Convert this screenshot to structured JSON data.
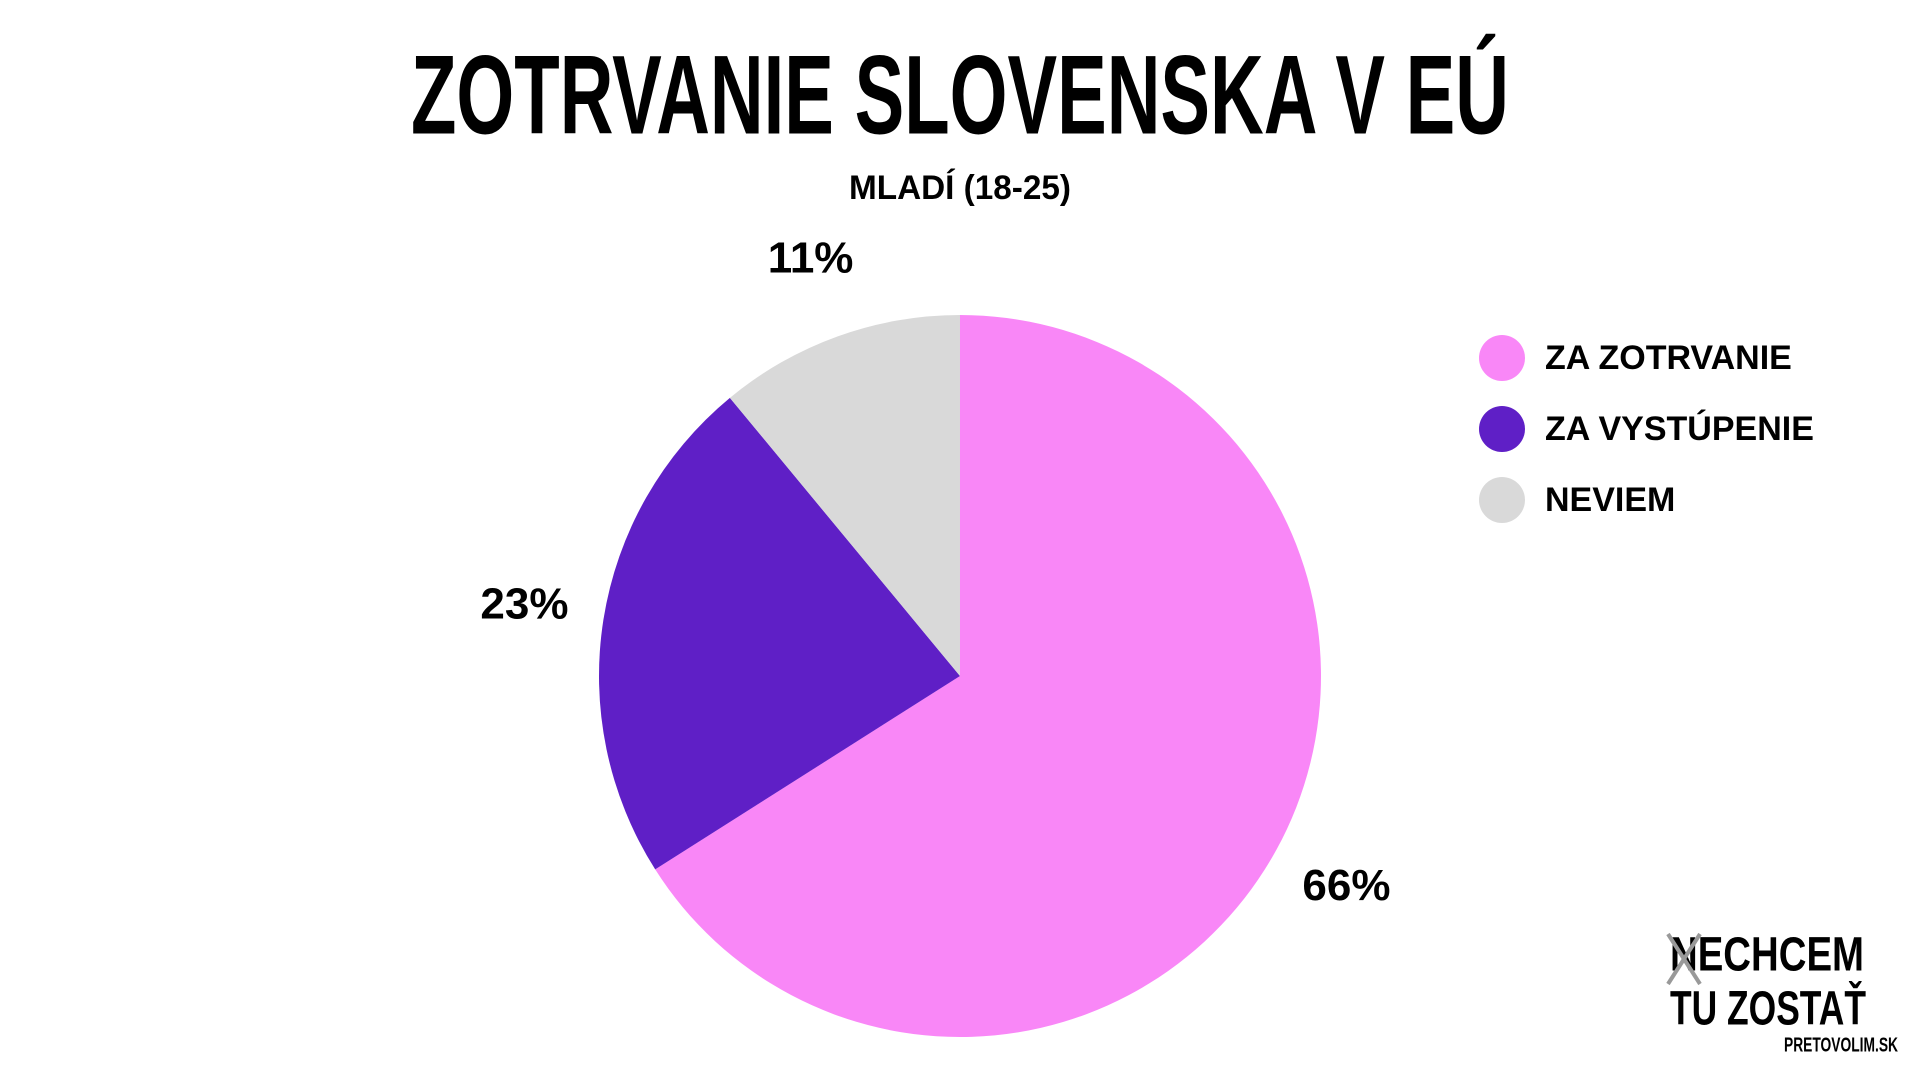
{
  "chart_data": {
    "type": "pie",
    "title": "ZOTRVANIE SLOVENSKA V EÚ",
    "subtitle": "MLADÍ (18-25)",
    "categories": [
      "ZA ZOTRVANIE",
      "ZA VYSTÚPENIE",
      "NEVIEM"
    ],
    "values": [
      66,
      23,
      11
    ],
    "value_labels": [
      "66%",
      "23%",
      "11%"
    ],
    "colors": [
      "#f987f7",
      "#5f1fc6",
      "#d9d9d9"
    ],
    "legend": "right"
  },
  "logo": {
    "lines": [
      "NECHCEM",
      "TU ZOSTAŤ"
    ],
    "site": "PRETOVOLIM.SK"
  }
}
